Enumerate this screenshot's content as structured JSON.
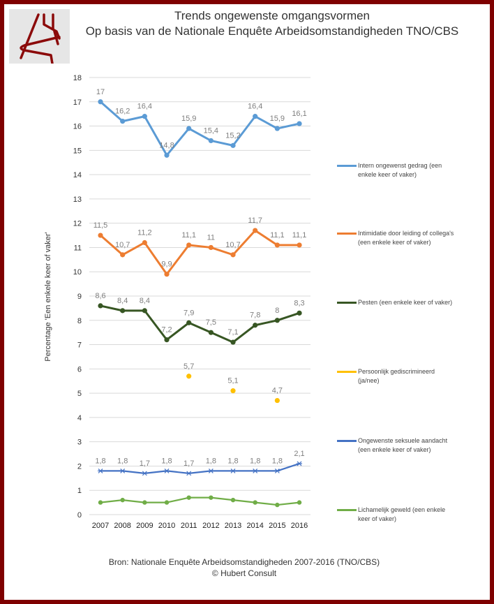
{
  "header": {
    "title_line1": "Trends ongewenste omgangsvormen",
    "title_line2": "Op basis van de Nationale Enquête Arbeidsomstandigheden TNO/CBS",
    "logo": "hubert-consult-logo"
  },
  "footer": {
    "source": "Bron: Nationale Enquête Arbeidsomstandigheden 2007-2016 (TNO/CBS)",
    "copyright": "© Hubert Consult"
  },
  "colors": {
    "border": "#7f0000",
    "blue": "#5b9bd5",
    "orange": "#ed7d31",
    "darkgreen": "#375623",
    "yellow": "#ffc000",
    "navy": "#4472c4",
    "green": "#70ad47"
  },
  "chart_data": {
    "type": "line",
    "title": "Trends ongewenste omgangsvormen",
    "xlabel": "",
    "ylabel": "Percentage 'Een enkele keer of vaker'",
    "ylim": [
      0,
      18
    ],
    "yticks": [
      "0",
      "1",
      "2",
      "3",
      "4",
      "5",
      "6",
      "7",
      "8",
      "9",
      "10",
      "11",
      "12",
      "13",
      "14",
      "15",
      "16",
      "17",
      "18"
    ],
    "grid": true,
    "legend_position": "right",
    "categories": [
      "2007",
      "2008",
      "2009",
      "2010",
      "2011",
      "2012",
      "2013",
      "2014",
      "2015",
      "2016"
    ],
    "series": [
      {
        "name": "Intern ongewenst gedrag (een enkele keer of vaker)",
        "color": "#5b9bd5",
        "marker": "circle",
        "line": true,
        "labels": true,
        "values": [
          17,
          16.2,
          16.4,
          14.8,
          15.9,
          15.4,
          15.2,
          16.4,
          15.9,
          16.1
        ],
        "value_labels": [
          "17",
          "16,2",
          "16,4",
          "14,8",
          "15,9",
          "15,4",
          "15,2",
          "16,4",
          "15,9",
          "16,1"
        ]
      },
      {
        "name": "Intimidatie door leiding of collega's (een enkele keer of vaker)",
        "color": "#ed7d31",
        "marker": "circle",
        "line": true,
        "labels": true,
        "values": [
          11.5,
          10.7,
          11.2,
          9.9,
          11.1,
          11,
          10.7,
          11.7,
          11.1,
          11.1
        ],
        "value_labels": [
          "11,5",
          "10,7",
          "11,2",
          "9,9",
          "11,1",
          "11",
          "10,7",
          "11,7",
          "11,1",
          "11,1"
        ]
      },
      {
        "name": "Pesten (een enkele keer of vaker)",
        "color": "#375623",
        "marker": "circle",
        "line": true,
        "labels": true,
        "values": [
          8.6,
          8.4,
          8.4,
          7.2,
          7.9,
          7.5,
          7.1,
          7.8,
          8,
          8.3
        ],
        "value_labels": [
          "8,6",
          "8,4",
          "8,4",
          "7,2",
          "7,9",
          "7,5",
          "7,1",
          "7,8",
          "8",
          "8,3"
        ]
      },
      {
        "name": "Persoonlijk gediscrimineerd (ja/nee)",
        "color": "#ffc000",
        "marker": "circle",
        "line": false,
        "labels": true,
        "values": [
          null,
          null,
          null,
          null,
          5.7,
          null,
          5.1,
          null,
          4.7,
          null
        ],
        "value_labels": [
          null,
          null,
          null,
          null,
          "5,7",
          null,
          "5,1",
          null,
          "4,7",
          null
        ]
      },
      {
        "name": "Ongewenste seksuele aandacht (een enkele keer of vaker)",
        "color": "#4472c4",
        "marker": "star",
        "line": true,
        "labels": true,
        "values": [
          1.8,
          1.8,
          1.7,
          1.8,
          1.7,
          1.8,
          1.8,
          1.8,
          1.8,
          2.1
        ],
        "value_labels": [
          "1,8",
          "1,8",
          "1,7",
          "1,8",
          "1,7",
          "1,8",
          "1,8",
          "1,8",
          "1,8",
          "2,1"
        ]
      },
      {
        "name": "Lichamelijk geweld (een enkele keer of vaker)",
        "color": "#70ad47",
        "marker": "circle",
        "line": true,
        "labels": false,
        "values": [
          0.5,
          0.6,
          0.5,
          0.5,
          0.7,
          0.7,
          0.6,
          0.5,
          0.4,
          0.5
        ],
        "value_labels": [
          null,
          null,
          null,
          null,
          null,
          null,
          null,
          null,
          null,
          null
        ]
      }
    ],
    "legend": [
      {
        "line1": "Intern ongewenst gedrag (een",
        "line2": "enkele keer of vaker)"
      },
      {
        "line1": "Intimidatie door leiding of collega's",
        "line2": "(een enkele keer of vaker)"
      },
      {
        "line1": "Pesten (een enkele keer of vaker)",
        "line2": ""
      },
      {
        "line1": "Persoonlijk gediscrimineerd",
        "line2": "(ja/nee)"
      },
      {
        "line1": "Ongewenste seksuele aandacht",
        "line2": "(een enkele keer of vaker)"
      },
      {
        "line1": "Lichamelijk geweld (een enkele",
        "line2": "keer of vaker)"
      }
    ]
  }
}
